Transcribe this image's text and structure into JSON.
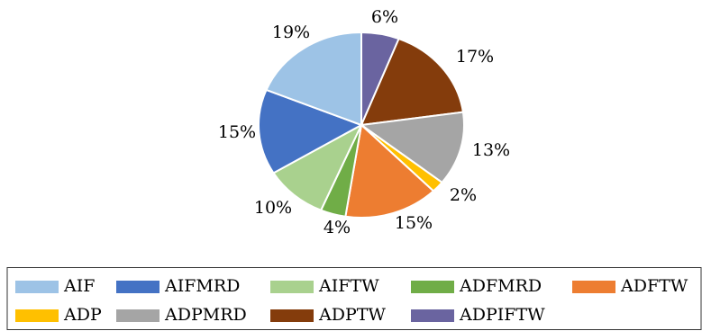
{
  "chart_data": {
    "type": "pie",
    "title": "",
    "start_angle_deg": 0,
    "direction": "clockwise",
    "legend_position": "bottom",
    "slices": [
      {
        "name": "ADPIFTW",
        "value": 6,
        "label": "6%",
        "color": "#6a64a0"
      },
      {
        "name": "ADPTW",
        "value": 17,
        "label": "17%",
        "color": "#843c0c"
      },
      {
        "name": "ADPMRD",
        "value": 13,
        "label": "13%",
        "color": "#a5a5a5"
      },
      {
        "name": "ADP",
        "value": 2,
        "label": "2%",
        "color": "#ffc000"
      },
      {
        "name": "ADFTW",
        "value": 15,
        "label": "15%",
        "color": "#ed7d31"
      },
      {
        "name": "ADFMRD",
        "value": 4,
        "label": "4%",
        "color": "#70ad47"
      },
      {
        "name": "AIFTW",
        "value": 10,
        "label": "10%",
        "color": "#a9d18e"
      },
      {
        "name": "AIFMRD",
        "value": 15,
        "label": "15%",
        "color": "#4472c4"
      },
      {
        "name": "AIF",
        "value": 19,
        "label": "19%",
        "color": "#9dc3e6"
      }
    ],
    "legend_order": [
      "AIF",
      "AIFMRD",
      "AIFTW",
      "ADFMRD",
      "ADFTW",
      "ADP",
      "ADPMRD",
      "ADPTW",
      "ADPIFTW"
    ]
  }
}
